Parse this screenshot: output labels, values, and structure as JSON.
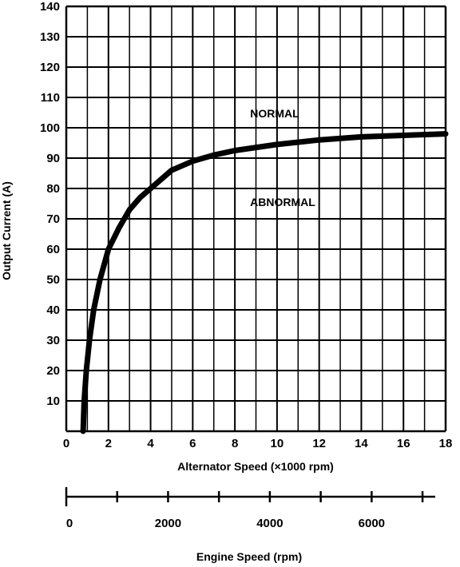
{
  "chart_data": {
    "type": "line",
    "ylabel": "Output Current (A)",
    "xlabel": "Alternator Speed (×1000 rpm)",
    "xlim": [
      0,
      18
    ],
    "ylim": [
      0,
      140
    ],
    "x_ticks": [
      0,
      2,
      4,
      6,
      8,
      10,
      12,
      14,
      16,
      18
    ],
    "y_ticks": [
      10,
      20,
      30,
      40,
      50,
      60,
      70,
      80,
      90,
      100,
      110,
      120,
      130,
      140
    ],
    "grid": true,
    "annotations": [
      {
        "text": "NORMAL",
        "x": 11.5,
        "y": 104
      },
      {
        "text": "ABNORMAL",
        "x": 11.5,
        "y": 74
      }
    ],
    "series": [
      {
        "values_note": "",
        "x": [
          0.8,
          0.85,
          0.95,
          1.1,
          1.3,
          1.6,
          2.0,
          2.5,
          3.0,
          3.5,
          4.0,
          5.0,
          6.0,
          7.0,
          8.0,
          10.0,
          12.0,
          14.0,
          16.0,
          18.0
        ],
        "y": [
          0,
          10,
          20,
          30,
          40,
          50,
          60,
          67,
          73,
          77,
          80,
          86,
          89,
          91,
          92.5,
          94.5,
          96,
          97,
          97.5,
          98
        ]
      }
    ],
    "secondary_axis": {
      "label": "Engine Speed (rpm)",
      "ticks": [
        0,
        2000,
        4000,
        6000
      ],
      "minor_ticks": [
        1000,
        3000,
        5000,
        7000
      ],
      "range": [
        0,
        7250
      ]
    }
  }
}
